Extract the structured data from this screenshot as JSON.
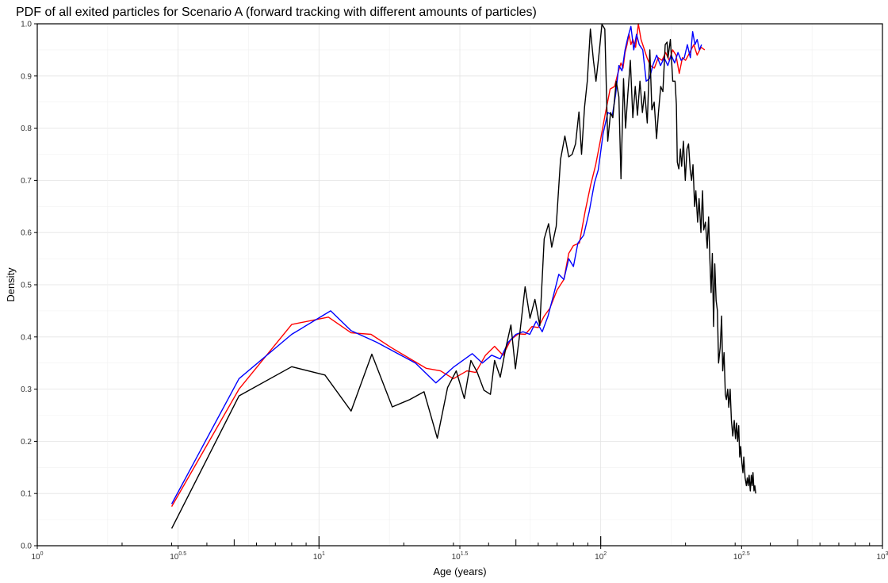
{
  "chart_data": {
    "type": "line",
    "title": "PDF of all exited particles for Scenario A (forward tracking with different amounts of particles)",
    "xlabel": "Age (years)",
    "ylabel": "Density",
    "x_scale": "log10",
    "xlim": [
      1,
      1000
    ],
    "ylim": [
      0,
      1
    ],
    "grid": true,
    "x_tick_labels": [
      {
        "value": 1,
        "base": "10",
        "exp": "0"
      },
      {
        "value": 3.1623,
        "base": "10",
        "exp": "0.5"
      },
      {
        "value": 10,
        "base": "10",
        "exp": "1"
      },
      {
        "value": 31.623,
        "base": "10",
        "exp": "1.5"
      },
      {
        "value": 100,
        "base": "10",
        "exp": "2"
      },
      {
        "value": 316.23,
        "base": "10",
        "exp": "2.5"
      },
      {
        "value": 1000,
        "base": "10",
        "exp": "3"
      }
    ],
    "y_ticks": [
      0.0,
      0.1,
      0.2,
      0.3,
      0.4,
      0.5,
      0.6,
      0.7,
      0.8,
      0.9,
      1.0
    ],
    "y_tick_labels": [
      "0.0",
      "0.1",
      "0.2",
      "0.3",
      "0.4",
      "0.5",
      "0.6",
      "0.7",
      "0.8",
      "0.9",
      "1.0"
    ],
    "series": [
      {
        "color": "#ff0000",
        "points": [
          [
            3.0,
            0.075
          ],
          [
            5.2,
            0.3
          ],
          [
            8.0,
            0.424
          ],
          [
            10.8,
            0.438
          ],
          [
            13.0,
            0.408
          ],
          [
            15.3,
            0.405
          ],
          [
            18.0,
            0.38
          ],
          [
            24.0,
            0.34
          ],
          [
            27.0,
            0.335
          ],
          [
            30.0,
            0.32
          ],
          [
            33.5,
            0.335
          ],
          [
            36.0,
            0.332
          ],
          [
            39.0,
            0.365
          ],
          [
            42.0,
            0.382
          ],
          [
            45.0,
            0.365
          ],
          [
            48.0,
            0.395
          ],
          [
            51.0,
            0.406
          ],
          [
            54.0,
            0.405
          ],
          [
            57.0,
            0.42
          ],
          [
            60.0,
            0.418
          ],
          [
            63.0,
            0.44
          ],
          [
            66.0,
            0.455
          ],
          [
            70.0,
            0.49
          ],
          [
            74.0,
            0.51
          ],
          [
            77.0,
            0.56
          ],
          [
            80.0,
            0.575
          ],
          [
            84.0,
            0.58
          ],
          [
            88.0,
            0.64
          ],
          [
            92.0,
            0.69
          ],
          [
            96.0,
            0.73
          ],
          [
            100.0,
            0.78
          ],
          [
            104.0,
            0.83
          ],
          [
            108.0,
            0.875
          ],
          [
            112.0,
            0.88
          ],
          [
            115.0,
            0.905
          ],
          [
            118.0,
            0.925
          ],
          [
            120.0,
            0.915
          ],
          [
            122.0,
            0.945
          ],
          [
            124.0,
            0.96
          ],
          [
            126.0,
            0.98
          ],
          [
            128.0,
            0.96
          ],
          [
            130.0,
            0.97
          ],
          [
            133.0,
            0.955
          ],
          [
            136.0,
            1.0
          ],
          [
            139.0,
            0.97
          ],
          [
            142.0,
            0.955
          ],
          [
            146.0,
            0.935
          ],
          [
            150.0,
            0.92
          ],
          [
            155.0,
            0.915
          ],
          [
            160.0,
            0.935
          ],
          [
            165.0,
            0.93
          ],
          [
            170.0,
            0.945
          ],
          [
            175.0,
            0.93
          ],
          [
            180.0,
            0.95
          ],
          [
            185.0,
            0.94
          ],
          [
            190.0,
            0.905
          ],
          [
            195.0,
            0.935
          ],
          [
            200.0,
            0.93
          ],
          [
            207.0,
            0.945
          ],
          [
            214.0,
            0.96
          ],
          [
            220.0,
            0.94
          ],
          [
            227.0,
            0.955
          ],
          [
            234.0,
            0.95
          ]
        ]
      },
      {
        "color": "#0000ff",
        "points": [
          [
            3.0,
            0.08
          ],
          [
            5.2,
            0.32
          ],
          [
            8.0,
            0.405
          ],
          [
            11.0,
            0.45
          ],
          [
            13.0,
            0.412
          ],
          [
            16.0,
            0.39
          ],
          [
            22.0,
            0.35
          ],
          [
            26.0,
            0.312
          ],
          [
            30.0,
            0.342
          ],
          [
            35.0,
            0.368
          ],
          [
            38.0,
            0.35
          ],
          [
            41.0,
            0.365
          ],
          [
            44.0,
            0.358
          ],
          [
            47.0,
            0.39
          ],
          [
            50.0,
            0.405
          ],
          [
            53.0,
            0.41
          ],
          [
            56.0,
            0.405
          ],
          [
            59.0,
            0.43
          ],
          [
            62.0,
            0.41
          ],
          [
            65.0,
            0.44
          ],
          [
            68.0,
            0.48
          ],
          [
            71.0,
            0.52
          ],
          [
            74.0,
            0.51
          ],
          [
            77.0,
            0.55
          ],
          [
            80.0,
            0.535
          ],
          [
            83.0,
            0.58
          ],
          [
            87.0,
            0.595
          ],
          [
            91.0,
            0.64
          ],
          [
            95.0,
            0.695
          ],
          [
            98.0,
            0.72
          ],
          [
            102.0,
            0.79
          ],
          [
            106.0,
            0.83
          ],
          [
            110.0,
            0.825
          ],
          [
            113.0,
            0.865
          ],
          [
            116.0,
            0.92
          ],
          [
            119.0,
            0.91
          ],
          [
            122.0,
            0.95
          ],
          [
            125.0,
            0.975
          ],
          [
            128.0,
            0.995
          ],
          [
            131.0,
            0.95
          ],
          [
            134.0,
            0.98
          ],
          [
            137.0,
            0.96
          ],
          [
            141.0,
            0.95
          ],
          [
            145.0,
            0.89
          ],
          [
            149.0,
            0.895
          ],
          [
            153.0,
            0.92
          ],
          [
            158.0,
            0.94
          ],
          [
            163.0,
            0.92
          ],
          [
            168.0,
            0.935
          ],
          [
            173.0,
            0.92
          ],
          [
            178.0,
            0.94
          ],
          [
            183.0,
            0.925
          ],
          [
            188.0,
            0.945
          ],
          [
            193.0,
            0.93
          ],
          [
            198.0,
            0.935
          ],
          [
            203.0,
            0.96
          ],
          [
            208.0,
            0.935
          ],
          [
            212.0,
            0.985
          ],
          [
            216.0,
            0.96
          ],
          [
            220.0,
            0.97
          ],
          [
            224.0,
            0.95
          ],
          [
            228.0,
            0.96
          ]
        ]
      },
      {
        "color": "#000000",
        "points": [
          [
            3.0,
            0.033
          ],
          [
            5.2,
            0.287
          ],
          [
            8.0,
            0.343
          ],
          [
            10.5,
            0.327
          ],
          [
            13.0,
            0.258
          ],
          [
            15.4,
            0.367
          ],
          [
            18.2,
            0.266
          ],
          [
            21.0,
            0.28
          ],
          [
            23.6,
            0.295
          ],
          [
            26.3,
            0.206
          ],
          [
            28.6,
            0.303
          ],
          [
            30.7,
            0.335
          ],
          [
            32.8,
            0.282
          ],
          [
            34.6,
            0.355
          ],
          [
            36.4,
            0.333
          ],
          [
            38.5,
            0.298
          ],
          [
            40.6,
            0.29
          ],
          [
            42.0,
            0.355
          ],
          [
            44.0,
            0.323
          ],
          [
            46.0,
            0.378
          ],
          [
            48.0,
            0.423
          ],
          [
            49.8,
            0.339
          ],
          [
            51.7,
            0.41
          ],
          [
            53.9,
            0.496
          ],
          [
            56.1,
            0.436
          ],
          [
            58.4,
            0.472
          ],
          [
            60.8,
            0.422
          ],
          [
            63.0,
            0.588
          ],
          [
            65.3,
            0.617
          ],
          [
            67.0,
            0.572
          ],
          [
            69.5,
            0.612
          ],
          [
            72.0,
            0.74
          ],
          [
            74.6,
            0.785
          ],
          [
            77.0,
            0.745
          ],
          [
            79.2,
            0.75
          ],
          [
            81.4,
            0.77
          ],
          [
            83.7,
            0.831
          ],
          [
            85.5,
            0.75
          ],
          [
            87.6,
            0.84
          ],
          [
            89.6,
            0.89
          ],
          [
            91.9,
            0.99
          ],
          [
            94.2,
            0.93
          ],
          [
            96.2,
            0.89
          ],
          [
            98.3,
            0.935
          ],
          [
            101.0,
            0.999
          ],
          [
            103.4,
            0.99
          ],
          [
            105.9,
            0.775
          ],
          [
            108.4,
            0.83
          ],
          [
            110.4,
            0.82
          ],
          [
            113.5,
            0.89
          ],
          [
            116.0,
            0.86
          ],
          [
            118.0,
            0.703
          ],
          [
            120.5,
            0.895
          ],
          [
            122.5,
            0.8
          ],
          [
            124.8,
            0.865
          ],
          [
            127.4,
            0.93
          ],
          [
            130.0,
            0.82
          ],
          [
            132.6,
            0.88
          ],
          [
            135.0,
            0.825
          ],
          [
            137.8,
            0.89
          ],
          [
            140.6,
            0.83
          ],
          [
            143.2,
            0.87
          ],
          [
            146.3,
            0.81
          ],
          [
            149.4,
            0.95
          ],
          [
            151.9,
            0.835
          ],
          [
            154.8,
            0.85
          ],
          [
            157.8,
            0.78
          ],
          [
            160.3,
            0.83
          ],
          [
            163.3,
            0.88
          ],
          [
            166.2,
            0.87
          ],
          [
            169.4,
            0.96
          ],
          [
            172.0,
            0.965
          ],
          [
            173.3,
            0.935
          ],
          [
            176.7,
            0.97
          ],
          [
            180.2,
            0.89
          ],
          [
            183.6,
            0.89
          ],
          [
            185.6,
            0.845
          ],
          [
            187.0,
            0.735
          ],
          [
            189.3,
            0.722
          ],
          [
            191.8,
            0.76
          ],
          [
            193.8,
            0.727
          ],
          [
            196.6,
            0.775
          ],
          [
            199.6,
            0.7
          ],
          [
            202.4,
            0.76
          ],
          [
            205.0,
            0.77
          ],
          [
            207.8,
            0.72
          ],
          [
            210.2,
            0.7
          ],
          [
            212.6,
            0.73
          ],
          [
            215.4,
            0.65
          ],
          [
            217.6,
            0.68
          ],
          [
            220.8,
            0.62
          ],
          [
            223.4,
            0.665
          ],
          [
            226.8,
            0.6
          ],
          [
            229.8,
            0.68
          ],
          [
            232.0,
            0.605
          ],
          [
            235.3,
            0.62
          ],
          [
            238.8,
            0.57
          ],
          [
            241.5,
            0.63
          ],
          [
            244.0,
            0.55
          ],
          [
            246.5,
            0.485
          ],
          [
            249.0,
            0.56
          ],
          [
            251.5,
            0.42
          ],
          [
            254.0,
            0.54
          ],
          [
            256.8,
            0.47
          ],
          [
            259.6,
            0.45
          ],
          [
            262.0,
            0.35
          ],
          [
            265.5,
            0.38
          ],
          [
            268.6,
            0.44
          ],
          [
            271.0,
            0.335
          ],
          [
            274.0,
            0.37
          ],
          [
            276.9,
            0.29
          ],
          [
            279.3,
            0.28
          ],
          [
            282.4,
            0.3
          ],
          [
            284.8,
            0.265
          ],
          [
            288.0,
            0.3
          ],
          [
            291.0,
            0.24
          ],
          [
            294.3,
            0.21
          ],
          [
            297.8,
            0.24
          ],
          [
            300.9,
            0.205
          ],
          [
            303.5,
            0.235
          ],
          [
            306.2,
            0.2
          ],
          [
            308.9,
            0.23
          ],
          [
            311.4,
            0.17
          ],
          [
            314.0,
            0.19
          ],
          [
            316.8,
            0.16
          ],
          [
            319.7,
            0.14
          ],
          [
            322.0,
            0.17
          ],
          [
            325.5,
            0.13
          ],
          [
            328.9,
            0.115
          ],
          [
            331.3,
            0.13
          ],
          [
            333.9,
            0.115
          ],
          [
            336.3,
            0.135
          ],
          [
            339.6,
            0.105
          ],
          [
            342.3,
            0.135
          ],
          [
            344.8,
            0.115
          ],
          [
            347.1,
            0.14
          ],
          [
            350.0,
            0.105
          ],
          [
            352.4,
            0.115
          ],
          [
            355.0,
            0.1
          ]
        ]
      }
    ]
  }
}
